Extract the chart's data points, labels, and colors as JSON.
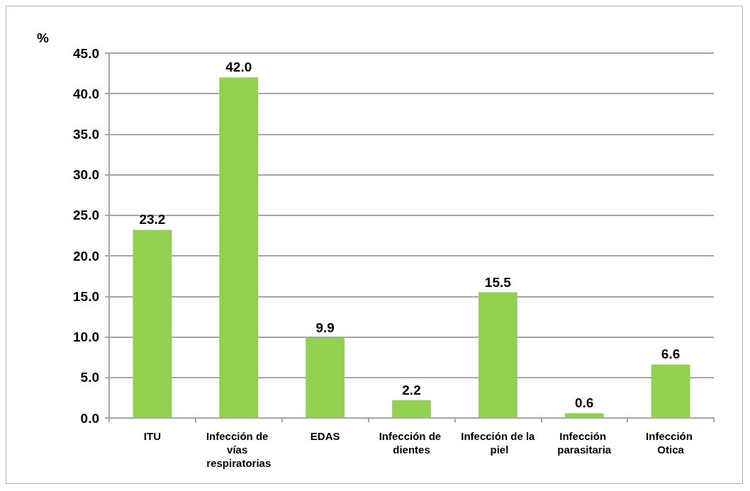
{
  "chart_data": {
    "type": "bar",
    "ylabel": "%",
    "categories": [
      "ITU",
      "Infección de vías respiratorias",
      "EDAS",
      "Infección de dientes",
      "Infección de la piel",
      "Infección parasitaria",
      "Infección Otica"
    ],
    "values": [
      23.2,
      42.0,
      9.9,
      2.2,
      15.5,
      0.6,
      6.6
    ],
    "color": "#92d050",
    "value_labels": [
      "23.2",
      "42.0",
      "9.9",
      "2.2",
      "15.5",
      "0.6",
      "6.6"
    ],
    "ylim": [
      0,
      45
    ],
    "yticks": [
      {
        "value": 0,
        "label": "0.0"
      },
      {
        "value": 5,
        "label": "5.0"
      },
      {
        "value": 10,
        "label": "10.0"
      },
      {
        "value": 15,
        "label": "15.0"
      },
      {
        "value": 20,
        "label": "20.0"
      },
      {
        "value": 25,
        "label": "25.0"
      },
      {
        "value": 30,
        "label": "30.0"
      },
      {
        "value": 35,
        "label": "35.0"
      },
      {
        "value": 40,
        "label": "40.0"
      },
      {
        "value": 45,
        "label": "45.0"
      }
    ],
    "grid": "y"
  }
}
